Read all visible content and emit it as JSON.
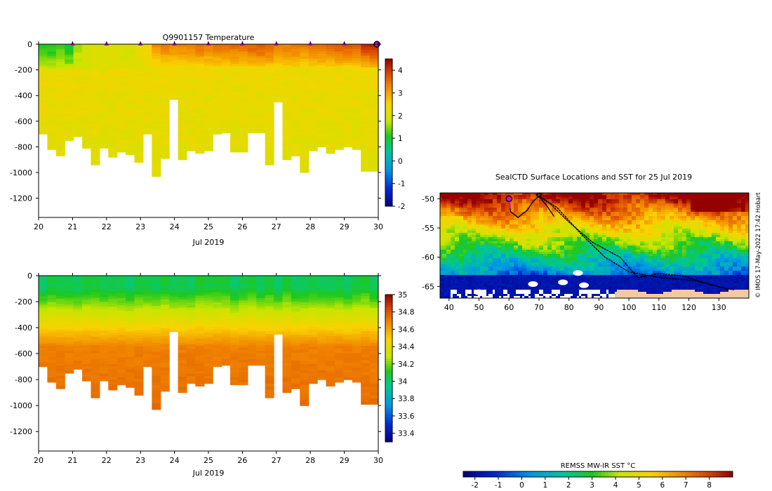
{
  "chart_data": [
    {
      "id": "temperature",
      "type": "heatmap",
      "title": "Q9901157  Temperature",
      "xlabel": "Jul 2019",
      "ylabel": "",
      "xlim": [
        20,
        30
      ],
      "ylim": [
        -1350,
        0
      ],
      "xticks": [
        "20",
        "21",
        "22",
        "23",
        "24",
        "25",
        "26",
        "27",
        "28",
        "29",
        "30"
      ],
      "yticks": [
        "0",
        "-200",
        "-400",
        "-600",
        "-800",
        "-1000",
        "-1200"
      ],
      "colorbar": {
        "min": -2,
        "max": 4.5,
        "ticks": [
          "-2",
          "-1",
          "0",
          "1",
          "2",
          "3",
          "4"
        ]
      },
      "surface_markers_days": [
        21,
        22,
        23,
        24,
        25,
        26,
        27,
        28,
        29,
        30
      ],
      "profile_depths_m": [
        700,
        820,
        870,
        750,
        720,
        810,
        940,
        810,
        880,
        840,
        860,
        920,
        700,
        1030,
        890,
        430,
        900,
        830,
        850,
        830,
        700,
        690,
        840,
        840,
        690,
        690,
        940,
        450,
        900,
        870,
        1000,
        830,
        800,
        850,
        820,
        800,
        820,
        990,
        990
      ],
      "surface_temperature_c": [
        1.2,
        1.0,
        1.3,
        0.9,
        1.6,
        1.9,
        2.0,
        2.1,
        2.1,
        2.0,
        2.0,
        2.2,
        2.5,
        3.2,
        3.4,
        3.3,
        3.3,
        3.4,
        3.5,
        3.4,
        3.5,
        3.5,
        3.6,
        3.6,
        3.7,
        3.8,
        3.6,
        3.5,
        3.4,
        3.5,
        3.4,
        3.5,
        3.6,
        3.7,
        3.8,
        3.8,
        3.6,
        4.1,
        4.3
      ],
      "deep_temperature_c": 2.1
    },
    {
      "id": "salinity",
      "type": "heatmap",
      "title": "",
      "xlabel": "Jul 2019",
      "ylabel": "",
      "xlim": [
        20,
        30
      ],
      "ylim": [
        -1350,
        0
      ],
      "xticks": [
        "20",
        "21",
        "22",
        "23",
        "24",
        "25",
        "26",
        "27",
        "28",
        "29",
        "30"
      ],
      "yticks": [
        "0",
        "-200",
        "-400",
        "-600",
        "-800",
        "-1000",
        "-1200"
      ],
      "colorbar": {
        "min": 33.3,
        "max": 35.0,
        "ticks": [
          "33.4",
          "33.6",
          "33.8",
          "34",
          "34.2",
          "34.4",
          "34.6",
          "34.8",
          "35"
        ]
      },
      "surface_salinity": 34.05,
      "deep_salinity": 34.7
    },
    {
      "id": "sst-map",
      "type": "heatmap",
      "title": "SealCTD Surface Locations and SST for 25 Jul 2019",
      "xlabel": "",
      "ylabel": "",
      "xlim": [
        37,
        140
      ],
      "ylim": [
        -67,
        -49
      ],
      "xticks": [
        "40",
        "50",
        "60",
        "70",
        "80",
        "90",
        "100",
        "110",
        "120",
        "130"
      ],
      "yticks": [
        "-50",
        "-55",
        "-60",
        "-65"
      ],
      "colorbar": {
        "label": "REMSS MW-IR SST °C",
        "min": -2.5,
        "max": 9,
        "ticks": [
          "-2",
          "-1",
          "0",
          "1",
          "2",
          "3",
          "4",
          "5",
          "6",
          "7",
          "8"
        ]
      },
      "track_start": {
        "lon": 60,
        "lat": -50
      },
      "credit": "© IMOS 17-May-2022 17:42 Hobart"
    }
  ]
}
